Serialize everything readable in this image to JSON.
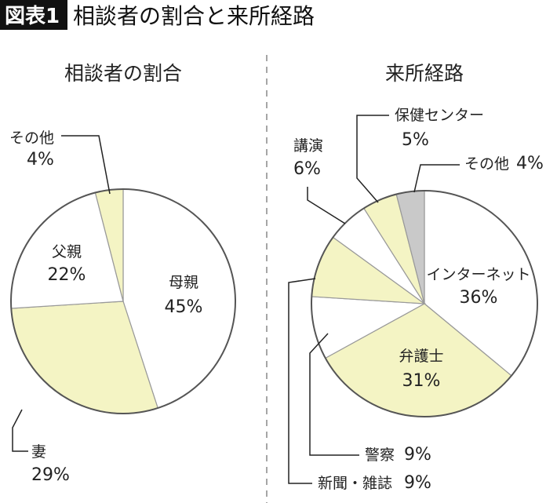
{
  "figure_tag": "図表1",
  "title": "相談者の割合と来所経路",
  "colors": {
    "white": "#ffffff",
    "yellow": "#f4f4c4",
    "gray": "#c9c9c9",
    "outline": "#555555"
  },
  "chart_data": [
    {
      "type": "pie",
      "title": "相談者の割合",
      "start": "12 o'clock, clockwise",
      "slices": [
        {
          "label": "母親",
          "value": 45,
          "text": "45%",
          "color": "white"
        },
        {
          "label": "妻",
          "value": 29,
          "text": "29%",
          "color": "yellow"
        },
        {
          "label": "父親",
          "value": 22,
          "text": "22%",
          "color": "white"
        },
        {
          "label": "その他",
          "value": 4,
          "text": "4%",
          "color": "yellow"
        }
      ]
    },
    {
      "type": "pie",
      "title": "来所経路",
      "start": "12 o'clock, clockwise",
      "slices": [
        {
          "label": "インターネット",
          "value": 36,
          "text": "36%",
          "color": "white"
        },
        {
          "label": "弁護士",
          "value": 31,
          "text": "31%",
          "color": "yellow"
        },
        {
          "label": "警察",
          "value": 9,
          "text": "9%",
          "color": "white"
        },
        {
          "label": "新聞・雑誌",
          "value": 9,
          "text": "9%",
          "color": "yellow"
        },
        {
          "label": "講演",
          "value": 6,
          "text": "6%",
          "color": "white"
        },
        {
          "label": "保健センター",
          "value": 5,
          "text": "5%",
          "color": "yellow"
        },
        {
          "label": "その他",
          "value": 4,
          "text": "4%",
          "color": "gray"
        }
      ]
    }
  ]
}
